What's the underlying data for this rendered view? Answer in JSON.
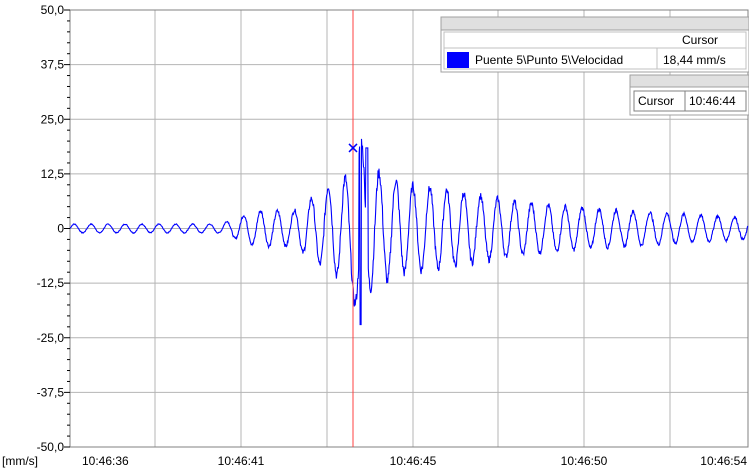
{
  "chart_data": {
    "type": "line",
    "xlabel": "",
    "ylabel": "",
    "y_unit_label": "[mm/s]",
    "ylim": [
      -50,
      50
    ],
    "x_ticks": [
      "10:46:36",
      "10:46:41",
      "10:46:45",
      "10:46:50",
      "10:46:54"
    ],
    "x_range_seconds_label": "10:46:36 – 10:46:54",
    "y_ticks": [
      "50,0",
      "37,5",
      "25,0",
      "12,5",
      "0",
      "-12,5",
      "-25,0",
      "-37,5",
      "-50,0"
    ],
    "grid": true,
    "colors": {
      "series": "#0000ff",
      "cursor": "#ff4040",
      "grid": "#b4b4b4"
    },
    "series": [
      {
        "name": "Puente 5\\Punto 5\\Velocidad",
        "envelope": [
          {
            "t": "10:46:36",
            "amp": 1.0
          },
          {
            "t": "10:46:40",
            "amp": 1.0
          },
          {
            "t": "10:46:41",
            "amp": 4.0
          },
          {
            "t": "10:46:42",
            "amp": 4.0
          },
          {
            "t": "10:46:43",
            "amp": 10.0
          },
          {
            "t": "10:46:44",
            "amp": 14.0
          },
          {
            "t": "10:46:45",
            "amp": 10.0
          },
          {
            "t": "10:46:46",
            "amp": 9.0
          },
          {
            "t": "10:46:48",
            "amp": 6.0
          },
          {
            "t": "10:46:50",
            "amp": 4.5
          },
          {
            "t": "10:46:54",
            "amp": 2.5
          }
        ],
        "peak_min": -22,
        "peak_max": 18.44
      }
    ],
    "cursor": {
      "time": "10:46:44",
      "value": 18.44,
      "value_text": "18,44 mm/s"
    },
    "legend": {
      "header": "Cursor",
      "series_label": "Puente 5\\Punto 5\\Velocidad",
      "value_text": "18,44 mm/s"
    },
    "cursor_box": {
      "label": "Cursor",
      "time": "10:46:44"
    }
  }
}
